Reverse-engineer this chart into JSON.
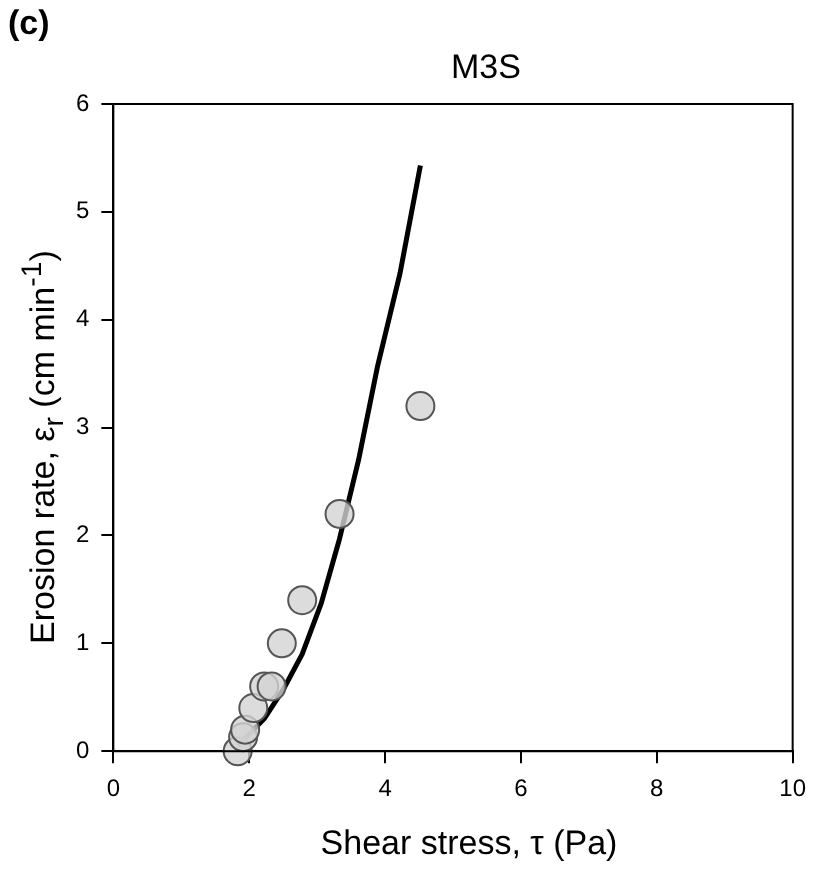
{
  "chart_data": {
    "type": "scatter",
    "title": "M3S",
    "xlabel": "Shear stress, τ (Pa)",
    "ylabel": "Erosion rate, ε$_{r}$ (cm min$^{-1}$)",
    "annotations": [
      "(c)"
    ],
    "xlim": [
      0,
      10
    ],
    "xticks": [
      0,
      2,
      4,
      6,
      8,
      10
    ],
    "ylim": [
      0,
      6
    ],
    "yticks": [
      0,
      1,
      2,
      3,
      4,
      5,
      6
    ],
    "grid": false,
    "legend": false,
    "series": [
      {
        "type": "scatter",
        "color": "#d3d3d3",
        "marker": "circle",
        "x": [
          1.83,
          1.91,
          1.94,
          2.06,
          2.22,
          2.33,
          2.48,
          2.78,
          3.33,
          4.52
        ],
        "values": [
          0,
          0.13,
          0.2,
          0.4,
          0.6,
          0.6,
          1.0,
          1.4,
          2.2,
          3.2
        ]
      },
      {
        "type": "line",
        "color": "#000000",
        "marker": "none",
        "line_style": "solid",
        "x": [
          1.83,
          2.22,
          2.5,
          2.78,
          3.06,
          3.33,
          3.61,
          3.89,
          4.22,
          4.52
        ],
        "values": [
          0.05,
          0.3,
          0.57,
          0.9,
          1.37,
          1.97,
          2.7,
          3.57,
          4.43,
          5.43
        ]
      }
    ]
  }
}
